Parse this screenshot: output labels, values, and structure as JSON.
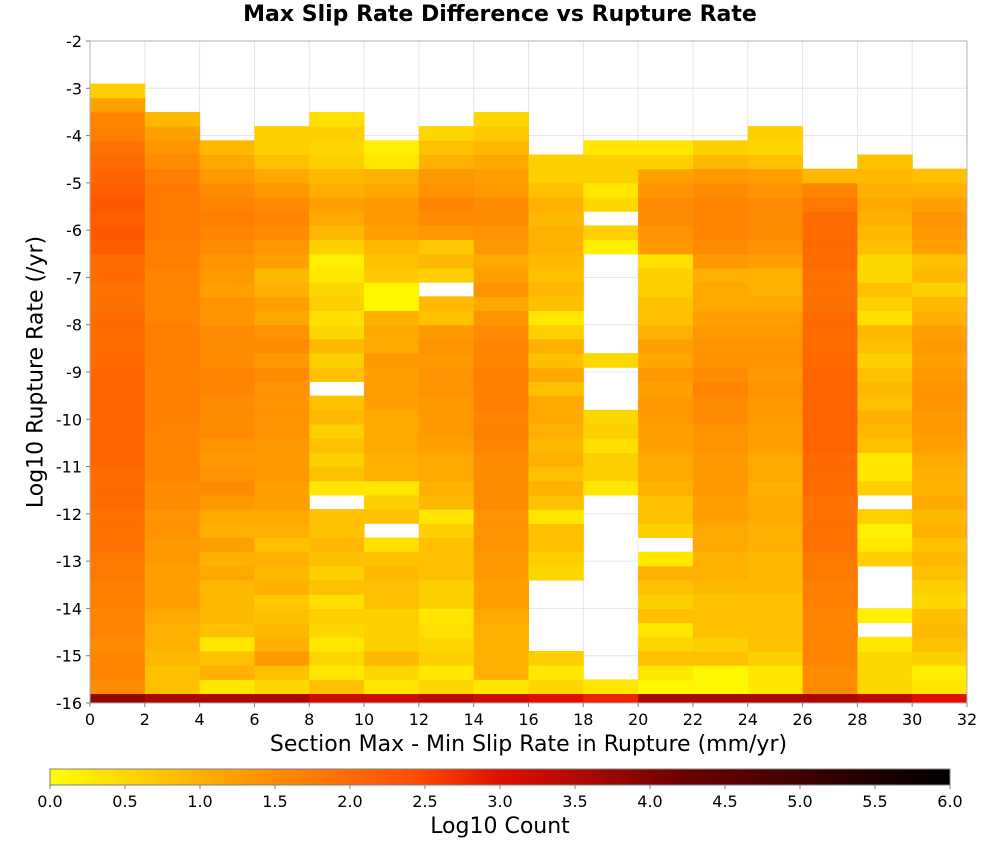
{
  "chart_data": {
    "type": "heatmap",
    "title": "Max Slip Rate Difference vs Rupture Rate",
    "xlabel": "Section Max - Min Slip Rate in Rupture (mm/yr)",
    "ylabel": "Log10 Rupture Rate (/yr)",
    "xlim": [
      0,
      32
    ],
    "ylim": [
      -16,
      -2
    ],
    "x_ticks": [
      "0",
      "2",
      "4",
      "6",
      "8",
      "10",
      "12",
      "14",
      "16",
      "18",
      "20",
      "22",
      "24",
      "26",
      "28",
      "30",
      "32"
    ],
    "y_ticks": [
      "-2",
      "-3",
      "-4",
      "-5",
      "-6",
      "-7",
      "-8",
      "-9",
      "-10",
      "-11",
      "-12",
      "-13",
      "-14",
      "-15",
      "-16"
    ],
    "x_bin_width": 2,
    "y_bin_height": 0.3,
    "x_bins": [
      1,
      3,
      5,
      7,
      9,
      11,
      13,
      15,
      17,
      19,
      21,
      23,
      25,
      27,
      29,
      31
    ],
    "y_bins": [
      -15.95,
      -15.65,
      -15.35,
      -15.05,
      -14.75,
      -14.45,
      -14.15,
      -13.85,
      -13.55,
      -13.25,
      -12.95,
      -12.65,
      -12.35,
      -12.05,
      -11.75,
      -11.45,
      -11.15,
      -10.85,
      -10.55,
      -10.25,
      -9.95,
      -9.65,
      -9.35,
      -9.05,
      -8.75,
      -8.45,
      -8.15,
      -7.85,
      -7.55,
      -7.25,
      -6.95,
      -6.65,
      -6.35,
      -6.05,
      -5.75,
      -5.45,
      -5.15,
      -4.85,
      -4.55,
      -4.25,
      -3.95,
      -3.65,
      -3.35,
      -3.05
    ],
    "z": [
      [
        3.8,
        3.6,
        3.6,
        3.6,
        3.2,
        3.2,
        3.4,
        3.2,
        3.0,
        2.8,
        3.6,
        3.6,
        3.6,
        3.6,
        3.4,
        3.0
      ],
      [
        1.5,
        0.8,
        0.3,
        0.5,
        0.8,
        0.3,
        0.5,
        0.3,
        0.5,
        0.3,
        0.1,
        0.1,
        0.3,
        1.5,
        0.5,
        0.3
      ],
      [
        1.6,
        0.8,
        1.0,
        0.8,
        0.3,
        0.5,
        0.3,
        1.0,
        0.3,
        null,
        0.3,
        0.1,
        0.3,
        1.5,
        0.5,
        0.2
      ],
      [
        1.6,
        0.9,
        0.8,
        1.3,
        0.5,
        0.9,
        0.6,
        1.0,
        0.6,
        null,
        0.8,
        0.8,
        0.6,
        1.6,
        0.5,
        0.6
      ],
      [
        1.5,
        1.0,
        0.3,
        1.0,
        0.3,
        0.6,
        0.5,
        1.0,
        null,
        null,
        0.5,
        0.6,
        0.8,
        1.6,
        0.3,
        0.8
      ],
      [
        1.6,
        1.0,
        0.8,
        0.9,
        0.5,
        0.6,
        0.4,
        1.0,
        null,
        null,
        0.3,
        0.8,
        0.8,
        1.6,
        null,
        0.9
      ],
      [
        1.6,
        1.1,
        0.9,
        0.8,
        0.6,
        0.6,
        0.3,
        1.1,
        null,
        null,
        0.8,
        0.8,
        0.8,
        1.6,
        0.2,
        0.8
      ],
      [
        1.7,
        1.2,
        0.9,
        0.7,
        0.4,
        0.8,
        0.6,
        1.2,
        null,
        null,
        0.6,
        0.8,
        0.8,
        1.7,
        null,
        0.5
      ],
      [
        1.7,
        1.2,
        0.9,
        1.0,
        0.8,
        0.8,
        0.6,
        1.2,
        null,
        null,
        0.8,
        0.9,
        0.9,
        1.7,
        null,
        0.6
      ],
      [
        1.8,
        1.2,
        1.1,
        0.9,
        0.6,
        0.9,
        0.8,
        1.3,
        0.5,
        null,
        1.0,
        1.0,
        0.9,
        1.8,
        null,
        0.8
      ],
      [
        1.8,
        1.3,
        1.0,
        1.0,
        0.8,
        0.8,
        0.8,
        1.3,
        0.6,
        null,
        0.3,
        1.0,
        0.9,
        1.8,
        0.6,
        0.9
      ],
      [
        1.9,
        1.3,
        1.2,
        0.8,
        0.9,
        0.4,
        0.8,
        1.4,
        0.8,
        null,
        null,
        1.1,
        1.0,
        1.9,
        0.3,
        0.8
      ],
      [
        1.9,
        1.4,
        1.0,
        1.0,
        0.8,
        null,
        0.6,
        1.4,
        0.8,
        null,
        0.6,
        1.1,
        1.0,
        1.9,
        0.2,
        1.0
      ],
      [
        1.9,
        1.4,
        1.1,
        1.1,
        0.8,
        0.8,
        0.3,
        1.4,
        0.3,
        null,
        0.8,
        1.2,
        1.1,
        1.9,
        0.6,
        0.9
      ],
      [
        2.0,
        1.5,
        1.3,
        1.2,
        null,
        0.6,
        0.9,
        1.5,
        0.8,
        null,
        0.8,
        1.2,
        1.1,
        1.9,
        null,
        1.1
      ],
      [
        2.0,
        1.5,
        1.5,
        1.2,
        0.3,
        0.3,
        1.0,
        1.5,
        1.0,
        0.3,
        1.0,
        1.3,
        1.0,
        2.0,
        0.6,
        1.0
      ],
      [
        2.0,
        1.6,
        1.4,
        1.3,
        0.8,
        1.0,
        1.1,
        1.5,
        0.8,
        0.6,
        1.1,
        1.3,
        1.1,
        2.0,
        0.3,
        1.0
      ],
      [
        2.1,
        1.6,
        1.3,
        1.3,
        0.6,
        1.0,
        1.1,
        1.5,
        1.0,
        0.6,
        1.1,
        1.3,
        1.1,
        2.0,
        0.3,
        1.1
      ],
      [
        2.1,
        1.6,
        1.4,
        1.3,
        0.8,
        1.1,
        1.2,
        1.6,
        0.9,
        0.4,
        1.2,
        1.4,
        1.2,
        2.1,
        0.8,
        1.2
      ],
      [
        2.1,
        1.6,
        1.5,
        1.4,
        0.6,
        1.1,
        1.3,
        1.7,
        1.0,
        0.6,
        1.2,
        1.4,
        1.2,
        2.1,
        0.9,
        1.3
      ],
      [
        2.1,
        1.7,
        1.5,
        1.4,
        0.9,
        1.1,
        1.3,
        1.6,
        1.1,
        0.5,
        1.3,
        1.5,
        1.3,
        2.1,
        1.0,
        1.3
      ],
      [
        2.1,
        1.7,
        1.5,
        1.4,
        0.8,
        1.2,
        1.3,
        1.7,
        1.1,
        null,
        1.3,
        1.5,
        1.3,
        2.1,
        0.8,
        1.4
      ],
      [
        2.1,
        1.7,
        1.6,
        1.4,
        null,
        1.2,
        1.4,
        1.7,
        0.8,
        null,
        1.2,
        1.6,
        1.4,
        2.1,
        0.9,
        1.4
      ],
      [
        2.1,
        1.7,
        1.6,
        1.5,
        0.8,
        1.2,
        1.4,
        1.7,
        1.1,
        null,
        1.3,
        1.5,
        1.3,
        2.1,
        0.8,
        1.3
      ],
      [
        2.0,
        1.7,
        1.5,
        1.3,
        0.6,
        1.3,
        1.3,
        1.6,
        0.8,
        0.5,
        1.1,
        1.4,
        1.4,
        2.0,
        0.6,
        1.2
      ],
      [
        2.0,
        1.7,
        1.5,
        1.5,
        0.9,
        1.1,
        1.4,
        1.6,
        1.0,
        null,
        1.2,
        1.4,
        1.4,
        2.0,
        0.8,
        1.3
      ],
      [
        2.0,
        1.7,
        1.5,
        1.4,
        0.5,
        1.1,
        1.3,
        1.5,
        0.6,
        null,
        1.0,
        1.3,
        1.3,
        2.0,
        0.9,
        1.2
      ],
      [
        2.0,
        1.6,
        1.4,
        1.1,
        0.4,
        1.0,
        0.8,
        1.4,
        0.3,
        null,
        0.8,
        1.2,
        1.2,
        2.0,
        0.4,
        1.0
      ],
      [
        1.9,
        1.6,
        1.4,
        1.2,
        0.6,
        0.1,
        0.9,
        1.1,
        0.8,
        null,
        0.8,
        1.1,
        1.1,
        1.9,
        0.6,
        0.9
      ],
      [
        1.9,
        1.6,
        1.2,
        1.0,
        0.5,
        0.1,
        null,
        1.4,
        0.9,
        null,
        0.6,
        1.1,
        1.0,
        1.9,
        0.8,
        0.6
      ],
      [
        2.0,
        1.6,
        1.3,
        0.9,
        0.3,
        0.7,
        0.6,
        1.2,
        0.8,
        null,
        0.6,
        1.0,
        1.0,
        1.9,
        0.5,
        0.9
      ],
      [
        2.0,
        1.7,
        1.4,
        1.2,
        0.2,
        0.8,
        0.9,
        1.1,
        0.9,
        null,
        0.4,
        1.3,
        1.2,
        2.0,
        0.5,
        0.8
      ],
      [
        2.2,
        1.7,
        1.5,
        1.3,
        0.6,
        0.9,
        0.7,
        1.3,
        1.0,
        0.2,
        1.3,
        1.5,
        1.4,
        2.0,
        0.8,
        1.2
      ],
      [
        2.3,
        1.8,
        1.6,
        1.5,
        0.9,
        1.2,
        1.3,
        1.4,
        1.0,
        0.6,
        1.4,
        1.6,
        1.5,
        2.0,
        0.9,
        1.3
      ],
      [
        2.2,
        1.8,
        1.7,
        1.6,
        1.1,
        1.3,
        1.5,
        1.5,
        0.9,
        null,
        1.5,
        1.6,
        1.5,
        2.0,
        1.0,
        1.4
      ],
      [
        2.3,
        1.8,
        1.6,
        1.5,
        1.2,
        1.3,
        1.6,
        1.5,
        1.0,
        0.5,
        1.5,
        1.6,
        1.5,
        1.8,
        1.1,
        1.2
      ],
      [
        2.2,
        1.8,
        1.5,
        1.3,
        1.0,
        1.1,
        1.4,
        1.3,
        0.8,
        0.3,
        1.4,
        1.5,
        1.4,
        1.6,
        1.0,
        1.0
      ],
      [
        2.1,
        1.7,
        1.3,
        1.1,
        0.9,
        1.0,
        1.3,
        1.2,
        0.6,
        0.6,
        1.2,
        1.3,
        1.2,
        0.9,
        0.9,
        0.8
      ],
      [
        2.0,
        1.5,
        1.1,
        0.8,
        0.6,
        0.3,
        1.0,
        1.1,
        0.6,
        0.6,
        0.6,
        0.9,
        0.8,
        null,
        0.8,
        null
      ],
      [
        1.9,
        1.4,
        0.9,
        0.6,
        0.5,
        0.2,
        0.8,
        0.9,
        null,
        0.3,
        0.3,
        0.6,
        0.5,
        null,
        null,
        null
      ],
      [
        1.7,
        1.2,
        null,
        0.6,
        0.6,
        null,
        0.5,
        0.7,
        null,
        null,
        null,
        null,
        0.6,
        null,
        null,
        null
      ],
      [
        1.6,
        0.9,
        null,
        null,
        0.4,
        null,
        null,
        0.5,
        null,
        null,
        null,
        null,
        null,
        null,
        null,
        null
      ],
      [
        1.2,
        null,
        null,
        null,
        null,
        null,
        null,
        null,
        null,
        null,
        null,
        null,
        null,
        null,
        null,
        null
      ],
      [
        0.6,
        null,
        null,
        null,
        null,
        null,
        null,
        null,
        null,
        null,
        null,
        null,
        null,
        null,
        null,
        null
      ]
    ],
    "colorbar": {
      "label": "Log10 Count",
      "range": [
        0,
        6
      ],
      "ticks": [
        "0.0",
        "0.5",
        "1.0",
        "1.5",
        "2.0",
        "2.5",
        "3.0",
        "3.5",
        "4.0",
        "4.5",
        "5.0",
        "5.5",
        "6.0"
      ],
      "colors": [
        "#ffff00",
        "#ffa000",
        "#ff5000",
        "#e01000",
        "#700000",
        "#000000"
      ]
    },
    "grid": true
  }
}
